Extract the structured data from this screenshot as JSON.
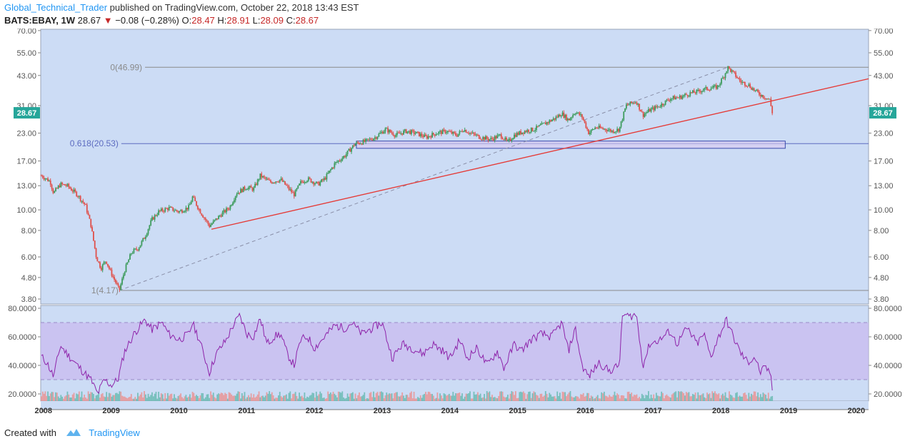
{
  "header": {
    "author": "Global_Technical_Trader",
    "published": "published on TradingView.com, October 22, 2018 13:43 EST",
    "symbol": "BATS:EBAY, 1W",
    "last": "28.67",
    "arrow": "▼",
    "change": "−0.08 (−0.28%)",
    "o_label": "O:",
    "o_value": "28.47",
    "h_label": "H:",
    "h_value": "28.91",
    "l_label": "L:",
    "l_value": "28.09",
    "c_label": "C:",
    "c_value": "28.67"
  },
  "footer": {
    "created_with": "Created with",
    "brand": "TradingView"
  },
  "colors": {
    "plot_bg": "#ccdcf5",
    "up": "#3d9b5c",
    "down": "#e0504a",
    "trendline": "#e53935",
    "fib_level": "#5c6bc0",
    "rsi_line": "#8e24aa",
    "rsi_band": "#c9b8ef",
    "price_badge": "#26a69a"
  },
  "chart_data": [
    {
      "type": "candlestick",
      "title": "",
      "y_scale": "log",
      "ylim": [
        3.6,
        71
      ],
      "y_ticks": [
        3.8,
        4.8,
        6.0,
        8.0,
        10.0,
        13.0,
        17.0,
        23.0,
        31.0,
        43.0,
        55.0,
        70.0
      ],
      "y_tick_labels": [
        "3.80",
        "4.80",
        "6.00",
        "8.00",
        "10.00",
        "13.00",
        "17.00",
        "23.00",
        "31.00",
        "43.00",
        "55.00",
        "70.00"
      ],
      "x_range": [
        2007.96,
        2020.18
      ],
      "x_ticks": [
        2008,
        2009,
        2010,
        2011,
        2012,
        2013,
        2014,
        2015,
        2016,
        2017,
        2018,
        2019,
        2020
      ],
      "x_tick_labels": [
        "2008",
        "2009",
        "2010",
        "2011",
        "2012",
        "2013",
        "2014",
        "2015",
        "2016",
        "2017",
        "2018",
        "2019",
        "2020"
      ],
      "last_price_label": "28.67",
      "price_path": [
        [
          2007.97,
          14.5
        ],
        [
          2008.1,
          13.6
        ],
        [
          2008.15,
          12.0
        ],
        [
          2008.25,
          13.2
        ],
        [
          2008.35,
          13.0
        ],
        [
          2008.5,
          11.8
        ],
        [
          2008.62,
          10.5
        ],
        [
          2008.7,
          8.5
        ],
        [
          2008.78,
          6.0
        ],
        [
          2008.85,
          5.3
        ],
        [
          2008.92,
          5.8
        ],
        [
          2008.98,
          5.2
        ],
        [
          2009.06,
          4.6
        ],
        [
          2009.12,
          4.17
        ],
        [
          2009.2,
          5.2
        ],
        [
          2009.3,
          6.3
        ],
        [
          2009.4,
          6.6
        ],
        [
          2009.5,
          7.5
        ],
        [
          2009.6,
          9.0
        ],
        [
          2009.7,
          9.8
        ],
        [
          2009.85,
          10.2
        ],
        [
          2010.0,
          9.8
        ],
        [
          2010.15,
          10.3
        ],
        [
          2010.2,
          11.5
        ],
        [
          2010.3,
          10.0
        ],
        [
          2010.45,
          8.4
        ],
        [
          2010.5,
          8.7
        ],
        [
          2010.62,
          9.5
        ],
        [
          2010.75,
          10.3
        ],
        [
          2010.85,
          12.0
        ],
        [
          2011.0,
          12.8
        ],
        [
          2011.1,
          12.5
        ],
        [
          2011.2,
          14.5
        ],
        [
          2011.35,
          13.5
        ],
        [
          2011.5,
          13.9
        ],
        [
          2011.6,
          12.8
        ],
        [
          2011.7,
          11.8
        ],
        [
          2011.8,
          13.5
        ],
        [
          2011.9,
          14.0
        ],
        [
          2012.05,
          13.2
        ],
        [
          2012.15,
          14.0
        ],
        [
          2012.3,
          16.5
        ],
        [
          2012.45,
          18.0
        ],
        [
          2012.6,
          20.5
        ],
        [
          2012.75,
          21.0
        ],
        [
          2012.9,
          22.0
        ],
        [
          2013.05,
          24.0
        ],
        [
          2013.2,
          22.5
        ],
        [
          2013.35,
          23.5
        ],
        [
          2013.5,
          23.0
        ],
        [
          2013.65,
          22.0
        ],
        [
          2013.8,
          23.0
        ],
        [
          2013.95,
          23.5
        ],
        [
          2014.1,
          22.5
        ],
        [
          2014.2,
          24.0
        ],
        [
          2014.3,
          23.0
        ],
        [
          2014.45,
          22.0
        ],
        [
          2014.6,
          21.5
        ],
        [
          2014.75,
          22.5
        ],
        [
          2014.85,
          20.8
        ],
        [
          2014.95,
          22.5
        ],
        [
          2015.1,
          23.5
        ],
        [
          2015.25,
          24.0
        ],
        [
          2015.4,
          25.5
        ],
        [
          2015.55,
          27.0
        ],
        [
          2015.65,
          28.5
        ],
        [
          2015.75,
          26.5
        ],
        [
          2015.85,
          29.0
        ],
        [
          2015.95,
          27.5
        ],
        [
          2016.05,
          23.0
        ],
        [
          2016.15,
          24.5
        ],
        [
          2016.3,
          24.0
        ],
        [
          2016.4,
          23.5
        ],
        [
          2016.5,
          24.0
        ],
        [
          2016.6,
          31.0
        ],
        [
          2016.75,
          32.5
        ],
        [
          2016.85,
          28.0
        ],
        [
          2016.95,
          29.5
        ],
        [
          2017.1,
          31.0
        ],
        [
          2017.25,
          33.5
        ],
        [
          2017.4,
          34.0
        ],
        [
          2017.55,
          35.5
        ],
        [
          2017.65,
          36.0
        ],
        [
          2017.75,
          37.0
        ],
        [
          2017.85,
          37.5
        ],
        [
          2017.95,
          38.0
        ],
        [
          2018.05,
          43.0
        ],
        [
          2018.1,
          46.99
        ],
        [
          2018.2,
          43.5
        ],
        [
          2018.3,
          40.0
        ],
        [
          2018.4,
          39.0
        ],
        [
          2018.5,
          36.5
        ],
        [
          2018.58,
          35.0
        ],
        [
          2018.65,
          34.0
        ],
        [
          2018.72,
          33.0
        ],
        [
          2018.76,
          28.67
        ]
      ],
      "fib_levels": [
        {
          "label": "0(46.99)",
          "value": 46.99
        },
        {
          "label": "0.618(20.53)",
          "value": 20.53
        },
        {
          "label": "1(4.17)",
          "value": 4.17
        }
      ],
      "trendline": {
        "from": [
          2010.48,
          8.1
        ],
        "to": [
          2020.18,
          41.5
        ]
      },
      "fib_diagonal": {
        "from": [
          2009.12,
          4.17
        ],
        "to": [
          2018.1,
          46.99
        ]
      },
      "zone": {
        "x_from": 2012.62,
        "x_to": 2018.95,
        "y_from": 19.5,
        "y_to": 21.1
      }
    },
    {
      "type": "line",
      "title": "",
      "ylim": [
        15,
        82
      ],
      "y_ticks": [
        20,
        40,
        60,
        80
      ],
      "y_tick_labels": [
        "20.0000",
        "40.0000",
        "60.0000",
        "80.0000"
      ],
      "band": [
        30,
        70
      ],
      "rsi_path": [
        [
          2007.97,
          46
        ],
        [
          2008.05,
          42
        ],
        [
          2008.15,
          32
        ],
        [
          2008.25,
          54
        ],
        [
          2008.35,
          48
        ],
        [
          2008.5,
          40
        ],
        [
          2008.62,
          34
        ],
        [
          2008.7,
          30
        ],
        [
          2008.8,
          20
        ],
        [
          2008.9,
          30
        ],
        [
          2009.0,
          26
        ],
        [
          2009.1,
          30
        ],
        [
          2009.2,
          50
        ],
        [
          2009.35,
          63
        ],
        [
          2009.5,
          72
        ],
        [
          2009.6,
          65
        ],
        [
          2009.75,
          70
        ],
        [
          2009.85,
          62
        ],
        [
          2010.0,
          58
        ],
        [
          2010.15,
          62
        ],
        [
          2010.2,
          70
        ],
        [
          2010.3,
          58
        ],
        [
          2010.45,
          35
        ],
        [
          2010.55,
          48
        ],
        [
          2010.7,
          58
        ],
        [
          2010.8,
          68
        ],
        [
          2010.9,
          75
        ],
        [
          2011.0,
          62
        ],
        [
          2011.1,
          60
        ],
        [
          2011.2,
          73
        ],
        [
          2011.3,
          55
        ],
        [
          2011.4,
          60
        ],
        [
          2011.5,
          62
        ],
        [
          2011.6,
          48
        ],
        [
          2011.7,
          40
        ],
        [
          2011.8,
          58
        ],
        [
          2011.9,
          60
        ],
        [
          2012.0,
          52
        ],
        [
          2012.15,
          60
        ],
        [
          2012.3,
          68
        ],
        [
          2012.45,
          66
        ],
        [
          2012.55,
          70
        ],
        [
          2012.7,
          62
        ],
        [
          2012.85,
          66
        ],
        [
          2013.0,
          70
        ],
        [
          2013.15,
          45
        ],
        [
          2013.3,
          55
        ],
        [
          2013.45,
          52
        ],
        [
          2013.6,
          48
        ],
        [
          2013.75,
          55
        ],
        [
          2013.9,
          50
        ],
        [
          2014.0,
          45
        ],
        [
          2014.15,
          58
        ],
        [
          2014.25,
          45
        ],
        [
          2014.4,
          52
        ],
        [
          2014.55,
          40
        ],
        [
          2014.7,
          50
        ],
        [
          2014.8,
          38
        ],
        [
          2014.95,
          55
        ],
        [
          2015.05,
          50
        ],
        [
          2015.2,
          58
        ],
        [
          2015.35,
          62
        ],
        [
          2015.5,
          60
        ],
        [
          2015.65,
          70
        ],
        [
          2015.75,
          50
        ],
        [
          2015.85,
          66
        ],
        [
          2015.95,
          40
        ],
        [
          2016.05,
          32
        ],
        [
          2016.2,
          42
        ],
        [
          2016.35,
          36
        ],
        [
          2016.5,
          40
        ],
        [
          2016.55,
          76
        ],
        [
          2016.65,
          74
        ],
        [
          2016.75,
          76
        ],
        [
          2016.85,
          40
        ],
        [
          2016.95,
          55
        ],
        [
          2017.1,
          58
        ],
        [
          2017.25,
          64
        ],
        [
          2017.35,
          55
        ],
        [
          2017.5,
          66
        ],
        [
          2017.65,
          55
        ],
        [
          2017.75,
          62
        ],
        [
          2017.85,
          46
        ],
        [
          2017.95,
          58
        ],
        [
          2018.08,
          72
        ],
        [
          2018.2,
          58
        ],
        [
          2018.3,
          48
        ],
        [
          2018.4,
          42
        ],
        [
          2018.5,
          46
        ],
        [
          2018.58,
          35
        ],
        [
          2018.65,
          38
        ],
        [
          2018.72,
          36
        ],
        [
          2018.76,
          23
        ]
      ]
    }
  ]
}
